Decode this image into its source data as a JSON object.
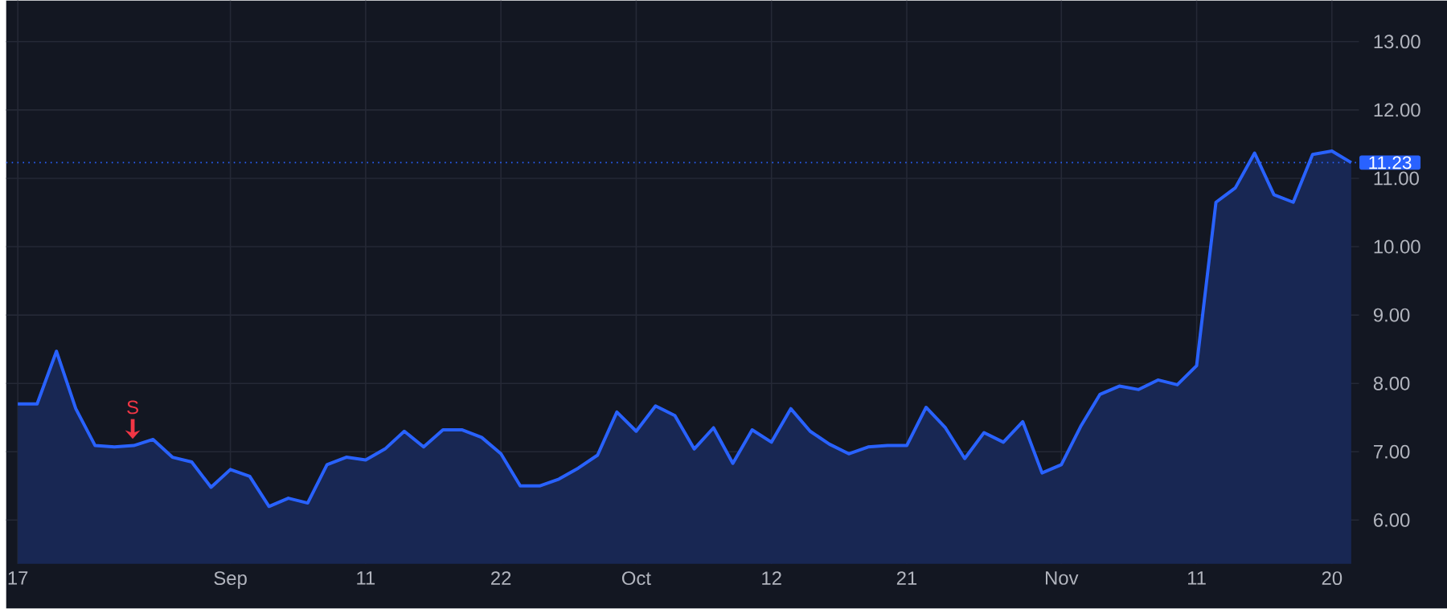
{
  "chart_data": {
    "type": "area",
    "categories": [
      "17",
      null,
      null,
      null,
      null,
      null,
      null,
      null,
      null,
      null,
      null,
      "Sep",
      null,
      null,
      null,
      null,
      null,
      null,
      "11",
      null,
      null,
      null,
      null,
      null,
      null,
      "22",
      null,
      null,
      null,
      null,
      null,
      null,
      "Oct",
      null,
      null,
      null,
      null,
      null,
      null,
      "12",
      null,
      null,
      null,
      null,
      null,
      null,
      "21",
      null,
      null,
      null,
      null,
      null,
      null,
      null,
      "Nov",
      null,
      null,
      null,
      null,
      null,
      null,
      "11",
      null,
      null,
      null,
      null,
      null,
      null,
      "20",
      null
    ],
    "series": [
      {
        "color": "#2962ff",
        "values": [
          7.7,
          7.7,
          8.47,
          7.63,
          7.09,
          7.07,
          7.09,
          7.18,
          6.92,
          6.85,
          6.48,
          6.74,
          6.64,
          6.2,
          6.32,
          6.25,
          6.81,
          6.92,
          6.88,
          7.04,
          7.3,
          7.07,
          7.32,
          7.32,
          7.21,
          6.97,
          6.5,
          6.5,
          6.6,
          6.76,
          6.95,
          7.58,
          7.3,
          7.67,
          7.53,
          7.04,
          7.35,
          6.83,
          7.32,
          7.14,
          7.63,
          7.3,
          7.11,
          6.97,
          7.07,
          7.09,
          7.09,
          7.65,
          7.35,
          6.9,
          7.28,
          7.14,
          7.44,
          6.69,
          6.81,
          7.37,
          7.84,
          7.96,
          7.91,
          8.05,
          7.98,
          8.26,
          10.65,
          10.86,
          11.37,
          10.76,
          10.65,
          11.35,
          11.4,
          11.23
        ]
      }
    ],
    "ylim": [
      5.36,
      13.6
    ],
    "yticks": [
      {
        "value": 6,
        "label": "6.00"
      },
      {
        "value": 7,
        "label": "7.00"
      },
      {
        "value": 8,
        "label": "8.00"
      },
      {
        "value": 9,
        "label": "9.00"
      },
      {
        "value": 10,
        "label": "10.00"
      },
      {
        "value": 11,
        "label": "11.00"
      },
      {
        "value": 12,
        "label": "12.00"
      },
      {
        "value": 13,
        "label": "13.00"
      }
    ],
    "grid": true,
    "ref_lines": [
      {
        "axis": "y",
        "value": 11.23,
        "label": "11.23",
        "color": "#2962ff",
        "line_style": "dotted"
      }
    ],
    "annotations": [
      "S"
    ]
  }
}
